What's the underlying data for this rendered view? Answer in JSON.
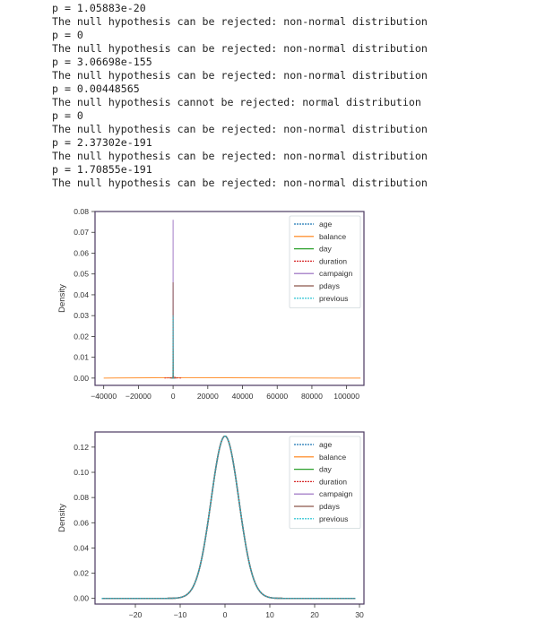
{
  "console_lines": [
    "p = 1.05883e-20",
    "The null hypothesis can be rejected: non-normal distribution",
    "p = 0",
    "The null hypothesis can be rejected: non-normal distribution",
    "p = 3.06698e-155",
    "The null hypothesis can be rejected: non-normal distribution",
    "p = 0.00448565",
    "The null hypothesis cannot be rejected: normal distribution",
    "p = 0",
    "The null hypothesis can be rejected: non-normal distribution",
    "p = 2.37302e-191",
    "The null hypothesis can be rejected: non-normal distribution",
    "p = 1.70855e-191",
    "The null hypothesis can be rejected: non-normal distribution"
  ],
  "colors": {
    "age": "#1f77b4",
    "balance": "#ff7f0e",
    "day": "#2ca02c",
    "duration": "#d62728",
    "campaign": "#9467bd",
    "pdays": "#8c564b",
    "previous": "#17becf",
    "frame": "#4b3a60",
    "background": "#ffffff"
  },
  "chart_data": [
    {
      "type": "line",
      "title": "",
      "xlabel": "",
      "ylabel": "Density",
      "xlim": [
        -45000,
        110000
      ],
      "ylim": [
        -0.0035,
        0.08
      ],
      "xticks": [
        -40000,
        -20000,
        0,
        20000,
        40000,
        60000,
        80000,
        100000
      ],
      "xtick_labels": [
        "−40000",
        "−20000",
        "0",
        "20000",
        "40000",
        "60000",
        "80000",
        "100000"
      ],
      "yticks": [
        0.0,
        0.01,
        0.02,
        0.03,
        0.04,
        0.05,
        0.06,
        0.07,
        0.08
      ],
      "ytick_labels": [
        "0.00",
        "0.01",
        "0.02",
        "0.03",
        "0.04",
        "0.05",
        "0.06",
        "0.07",
        "0.08"
      ],
      "grid": false,
      "legend_position": "top-right",
      "series": [
        {
          "name": "age",
          "x": [
            -1000,
            -200,
            0,
            200,
            1000
          ],
          "y": [
            0,
            0,
            0.0008,
            0,
            0
          ]
        },
        {
          "name": "balance",
          "x": [
            -40000,
            0,
            108000
          ],
          "y": [
            0,
            0.0002,
            0
          ]
        },
        {
          "name": "day",
          "x": [
            -500,
            -100,
            0,
            100,
            500
          ],
          "y": [
            0,
            0,
            0.014,
            0,
            0
          ]
        },
        {
          "name": "duration",
          "x": [
            -5000,
            -500,
            400,
            1500,
            5000
          ],
          "y": [
            0,
            0.0002,
            0.0009,
            0.0001,
            0
          ]
        },
        {
          "name": "campaign",
          "x": [
            -200,
            -20,
            0,
            20,
            200
          ],
          "y": [
            0,
            0,
            0.076,
            0,
            0
          ]
        },
        {
          "name": "pdays",
          "x": [
            -2000,
            -100,
            0,
            100,
            2000
          ],
          "y": [
            0,
            0,
            0.046,
            0,
            0
          ]
        },
        {
          "name": "previous",
          "x": [
            -300,
            -30,
            0,
            30,
            300
          ],
          "y": [
            0,
            0,
            0.03,
            0,
            0
          ]
        }
      ]
    },
    {
      "type": "line",
      "title": "",
      "xlabel": "",
      "ylabel": "Density",
      "xlim": [
        -29,
        31
      ],
      "ylim": [
        -0.0045,
        0.132
      ],
      "xticks": [
        -20,
        -10,
        0,
        10,
        20,
        30
      ],
      "xtick_labels": [
        "−20",
        "−10",
        "0",
        "10",
        "20",
        "30"
      ],
      "yticks": [
        0.0,
        0.02,
        0.04,
        0.06,
        0.08,
        0.1,
        0.12
      ],
      "ytick_labels": [
        "0.00",
        "0.02",
        "0.04",
        "0.06",
        "0.08",
        "0.10",
        "0.12"
      ],
      "grid": false,
      "legend_position": "top-right",
      "distribution": {
        "mean": 0,
        "std": 3.1,
        "x_range": [
          -27.5,
          29.2
        ]
      },
      "series": [
        {
          "name": "age"
        },
        {
          "name": "balance"
        },
        {
          "name": "day"
        },
        {
          "name": "duration"
        },
        {
          "name": "campaign"
        },
        {
          "name": "pdays"
        },
        {
          "name": "previous"
        }
      ]
    }
  ]
}
